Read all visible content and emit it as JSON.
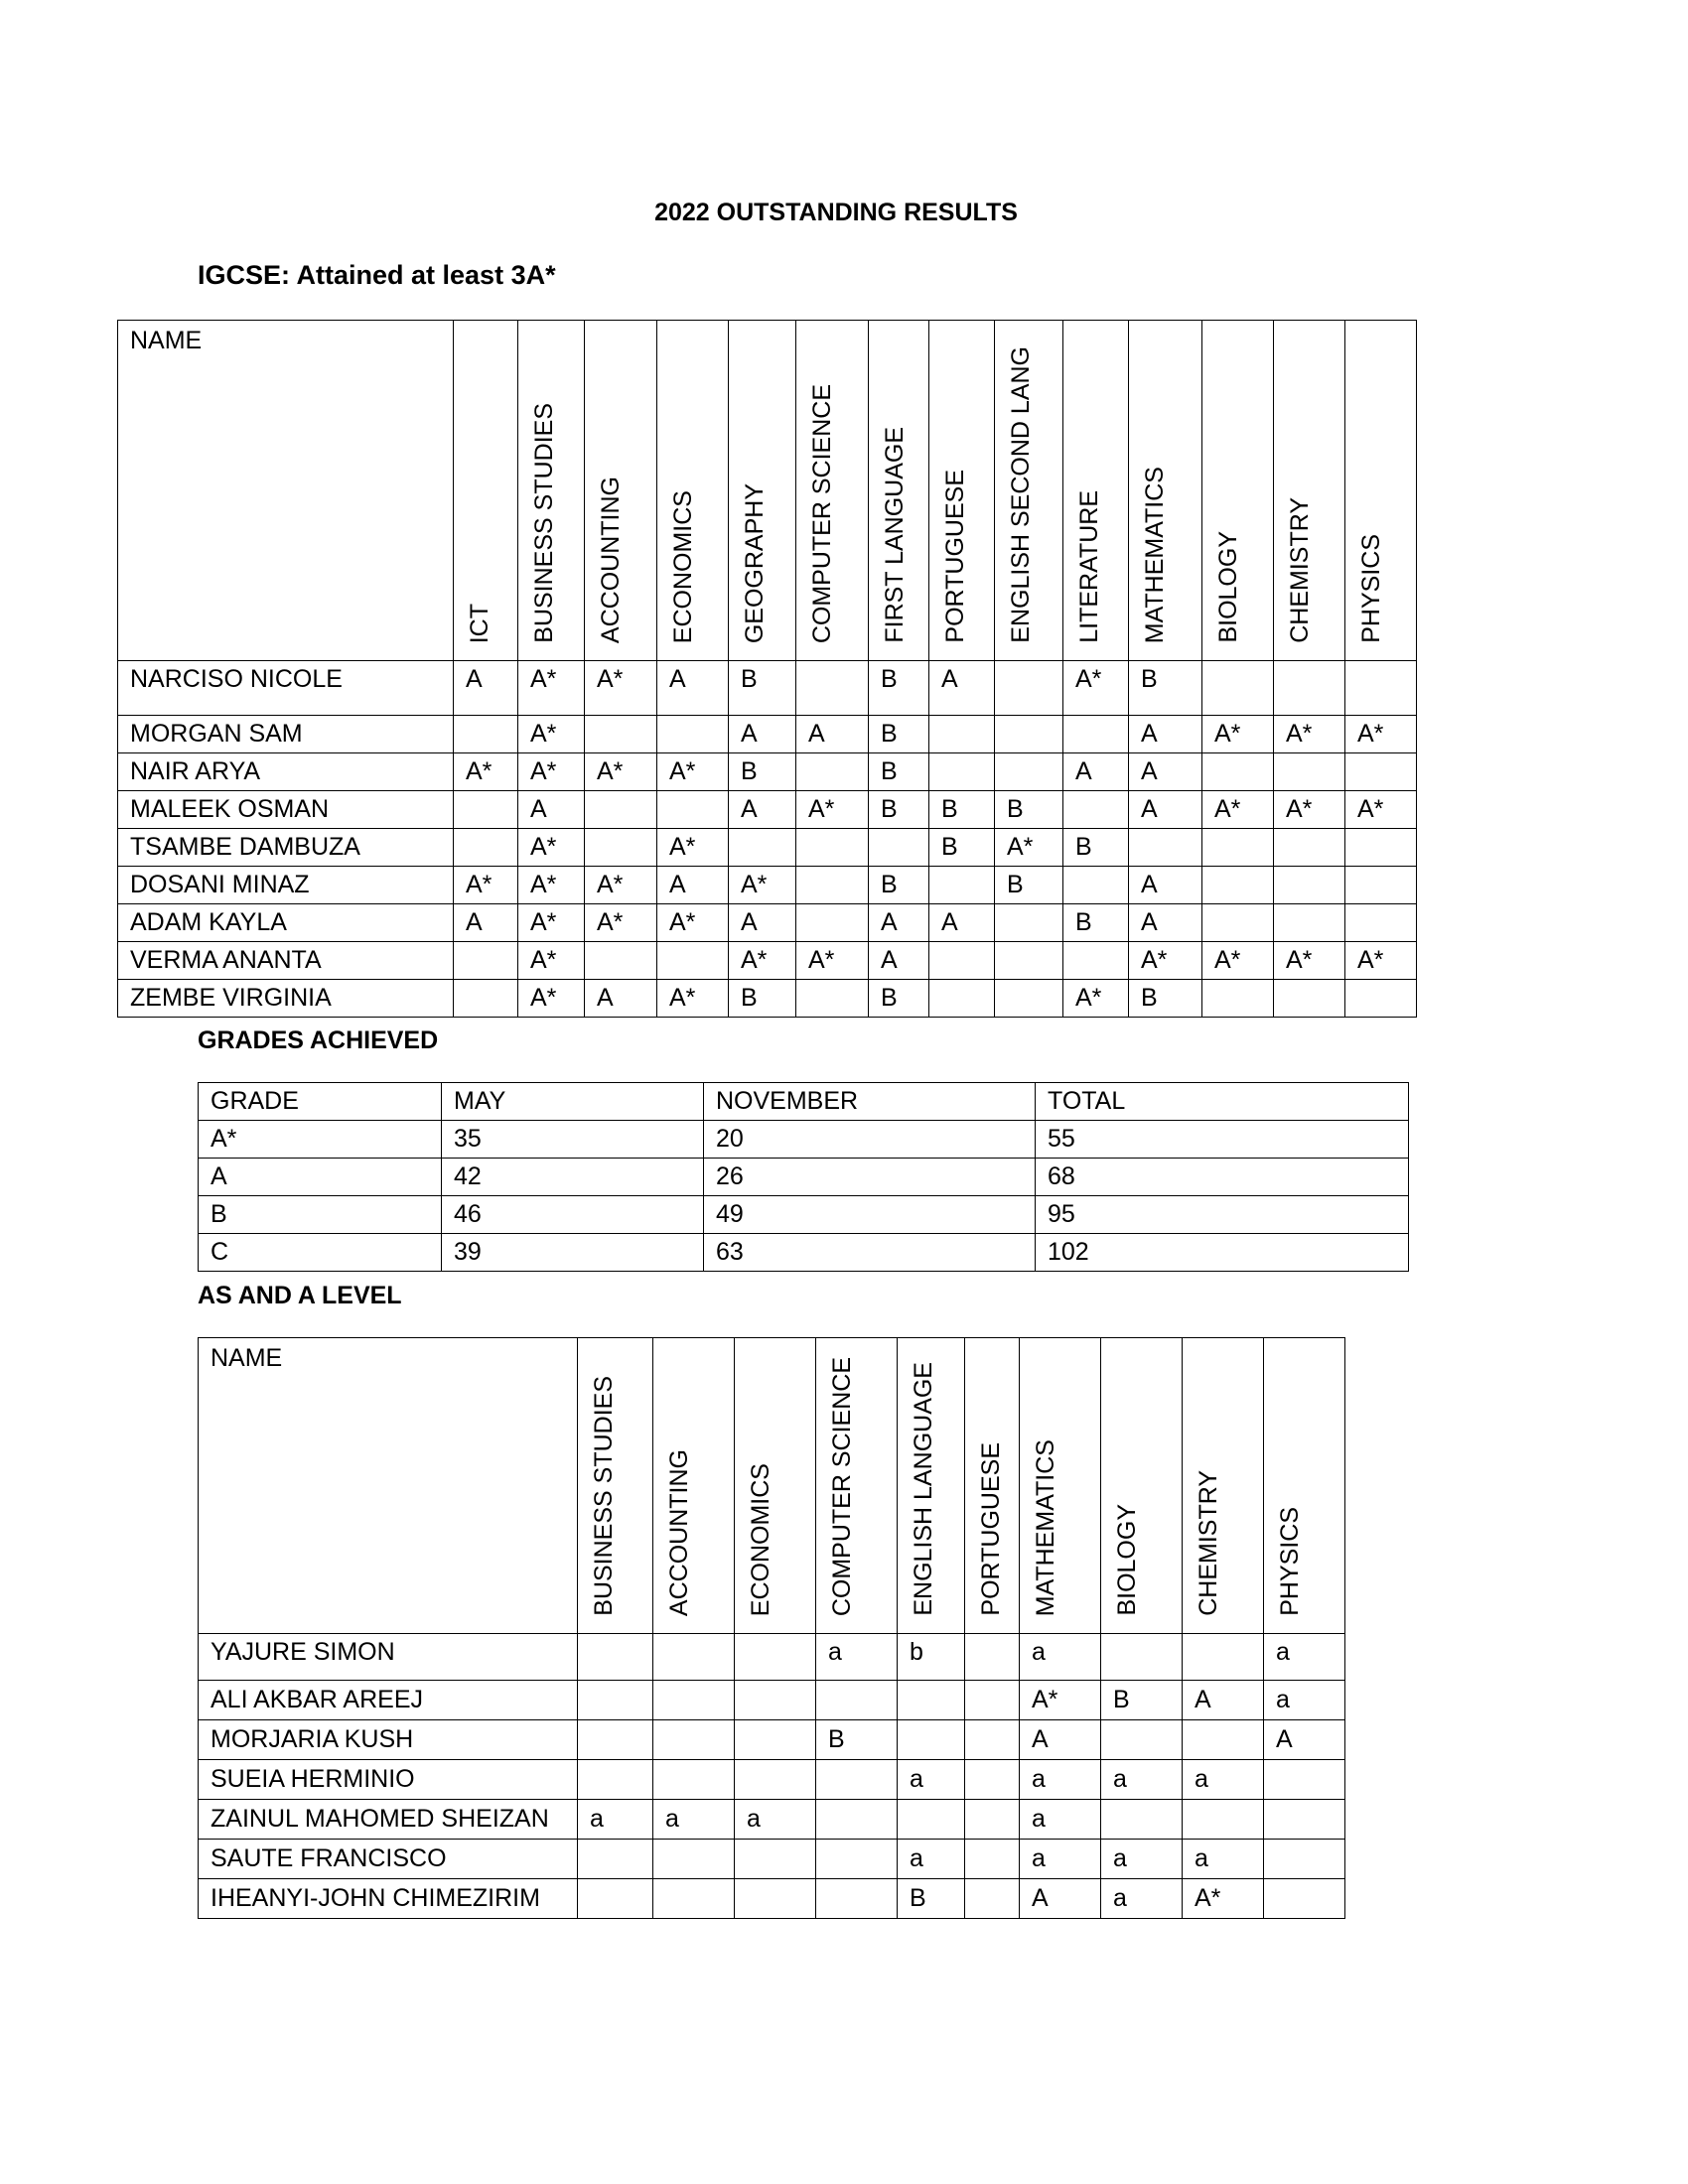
{
  "title": "2022 OUTSTANDING RESULTS",
  "igcse": {
    "heading": "IGCSE: Attained at least 3A*",
    "name_header": "NAME",
    "subjects": [
      "ICT",
      "BUSINESS STUDIES",
      "ACCOUNTING",
      "ECONOMICS",
      "GEOGRAPHY",
      "COMPUTER SCIENCE",
      "FIRST LANGUAGE",
      "PORTUGUESE",
      "ENGLISH SECOND LANG",
      "LITERATURE",
      "MATHEMATICS",
      "BIOLOGY",
      "CHEMISTRY",
      "PHYSICS"
    ],
    "rows": [
      {
        "name": "NARCISO NICOLE",
        "grades": [
          "A",
          "A*",
          "A*",
          "A",
          "B",
          "",
          "B",
          "A",
          "",
          "A*",
          "B",
          "",
          "",
          ""
        ]
      },
      {
        "name": "MORGAN SAM",
        "grades": [
          "",
          "A*",
          "",
          "",
          "A",
          "A",
          "B",
          "",
          "",
          "",
          "A",
          "A*",
          "A*",
          "A*"
        ]
      },
      {
        "name": "NAIR ARYA",
        "grades": [
          "A*",
          "A*",
          "A*",
          "A*",
          "B",
          "",
          "B",
          "",
          "",
          "A",
          "A",
          "",
          "",
          ""
        ]
      },
      {
        "name": "MALEEK OSMAN",
        "grades": [
          "",
          "A",
          "",
          "",
          "A",
          "A*",
          "B",
          "B",
          "B",
          "",
          "A",
          "A*",
          "A*",
          "A*"
        ]
      },
      {
        "name": "TSAMBE DAMBUZA",
        "grades": [
          "",
          "A*",
          "",
          "A*",
          "",
          "",
          "",
          "B",
          "A*",
          "B",
          "",
          "",
          "",
          ""
        ]
      },
      {
        "name": "DOSANI MINAZ",
        "grades": [
          "A*",
          "A*",
          "A*",
          "A",
          "A*",
          "",
          "B",
          "",
          "B",
          "",
          "A",
          "",
          "",
          ""
        ]
      },
      {
        "name": "ADAM KAYLA",
        "grades": [
          "A",
          "A*",
          "A*",
          "A*",
          "A",
          "",
          "A",
          "A",
          "",
          "B",
          "A",
          "",
          "",
          ""
        ]
      },
      {
        "name": "VERMA ANANTA",
        "grades": [
          "",
          "A*",
          "",
          "",
          "A*",
          "A*",
          "A",
          "",
          "",
          "",
          "A*",
          "A*",
          "A*",
          "A*"
        ]
      },
      {
        "name": "ZEMBE VIRGINIA",
        "grades": [
          "",
          "A*",
          "A",
          "A*",
          "B",
          "",
          "B",
          "",
          "",
          "A*",
          "B",
          "",
          "",
          ""
        ]
      }
    ]
  },
  "grades_achieved": {
    "heading": "GRADES ACHIEVED",
    "headers": [
      "GRADE",
      "MAY",
      "NOVEMBER",
      "TOTAL"
    ],
    "rows": [
      [
        "A*",
        "35",
        "20",
        "55"
      ],
      [
        "A",
        "42",
        "26",
        "68"
      ],
      [
        "B",
        "46",
        "49",
        "95"
      ],
      [
        "C",
        "39",
        "63",
        "102"
      ]
    ]
  },
  "as_a_level": {
    "heading": "AS AND A LEVEL",
    "name_header": "NAME",
    "subjects": [
      "BUSINESS STUDIES",
      "ACCOUNTING",
      "ECONOMICS",
      "COMPUTER SCIENCE",
      "ENGLISH LANGUAGE",
      "PORTUGUESE",
      "MATHEMATICS",
      "BIOLOGY",
      "CHEMISTRY",
      "PHYSICS"
    ],
    "rows": [
      {
        "name": "YAJURE SIMON",
        "grades": [
          "",
          "",
          "",
          "a",
          "b",
          "",
          "a",
          "",
          "",
          "a"
        ]
      },
      {
        "name": "ALI AKBAR AREEJ",
        "grades": [
          "",
          "",
          "",
          "",
          "",
          "",
          "A*",
          "B",
          "A",
          "a"
        ]
      },
      {
        "name": "MORJARIA KUSH",
        "grades": [
          "",
          "",
          "",
          "B",
          "",
          "",
          "A",
          "",
          "",
          "A"
        ]
      },
      {
        "name": "SUEIA HERMINIO",
        "grades": [
          "",
          "",
          "",
          "",
          "a",
          "",
          "a",
          "a",
          "a",
          ""
        ]
      },
      {
        "name": "ZAINUL MAHOMED SHEIZAN",
        "grades": [
          "a",
          "a",
          "a",
          "",
          "",
          "",
          "a",
          "",
          "",
          ""
        ]
      },
      {
        "name": "SAUTE FRANCISCO",
        "grades": [
          "",
          "",
          "",
          "",
          "a",
          "",
          "a",
          "a",
          "a",
          ""
        ]
      },
      {
        "name": "IHEANYI-JOHN CHIMEZIRIM",
        "grades": [
          "",
          "",
          "",
          "",
          "B",
          "",
          "A",
          "a",
          "A*",
          ""
        ]
      }
    ]
  }
}
